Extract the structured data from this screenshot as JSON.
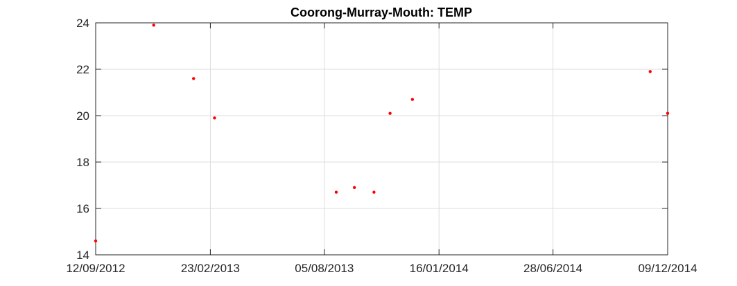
{
  "chart_data": {
    "type": "scatter",
    "title": "Coorong-Murray-Mouth: TEMP",
    "xlabel": "",
    "ylabel": "",
    "x_axis_type": "date",
    "xlim": [
      "2012-09-12",
      "2014-12-09"
    ],
    "ylim": [
      14,
      24
    ],
    "x_ticks": [
      {
        "date": "2012-09-12",
        "label": "12/09/2012"
      },
      {
        "date": "2013-02-23",
        "label": "23/02/2013"
      },
      {
        "date": "2013-08-05",
        "label": "05/08/2013"
      },
      {
        "date": "2014-01-16",
        "label": "16/01/2014"
      },
      {
        "date": "2014-06-28",
        "label": "28/06/2014"
      },
      {
        "date": "2014-12-09",
        "label": "09/12/2014"
      }
    ],
    "y_ticks": [
      14,
      16,
      18,
      20,
      22,
      24
    ],
    "grid": true,
    "legend": "none",
    "marker_color": "#ff0000",
    "series": [
      {
        "points": [
          {
            "x": "2012-09-12",
            "y": 14.6
          },
          {
            "x": "2012-12-04",
            "y": 23.9
          },
          {
            "x": "2013-01-30",
            "y": 21.6
          },
          {
            "x": "2013-03-01",
            "y": 19.9
          },
          {
            "x": "2013-08-22",
            "y": 16.7
          },
          {
            "x": "2013-09-17",
            "y": 16.9
          },
          {
            "x": "2013-10-15",
            "y": 16.7
          },
          {
            "x": "2013-11-07",
            "y": 20.1
          },
          {
            "x": "2013-12-09",
            "y": 20.7
          },
          {
            "x": "2014-11-14",
            "y": 21.9
          },
          {
            "x": "2014-12-09",
            "y": 20.1
          }
        ]
      }
    ]
  }
}
